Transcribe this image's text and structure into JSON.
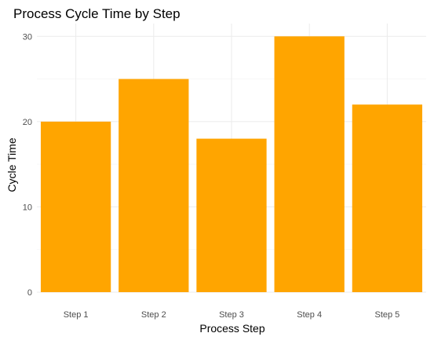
{
  "chart_data": {
    "type": "bar",
    "title": "Process Cycle Time by Step",
    "xlabel": "Process Step",
    "ylabel": "Cycle Time",
    "categories": [
      "Step 1",
      "Step 2",
      "Step 3",
      "Step 4",
      "Step 5"
    ],
    "values": [
      20,
      25,
      18,
      30,
      22
    ],
    "ylim": [
      0,
      31.5
    ],
    "yticks": [
      0,
      10,
      20,
      30
    ],
    "grid": true,
    "legend": "none",
    "colors": {
      "bar": "#FFA500",
      "grid_major": "#EBEBEB",
      "grid_minor": "#F5F5F5",
      "text": "#000000",
      "tick_text": "#4D4D4D",
      "background": "#FFFFFF"
    }
  }
}
